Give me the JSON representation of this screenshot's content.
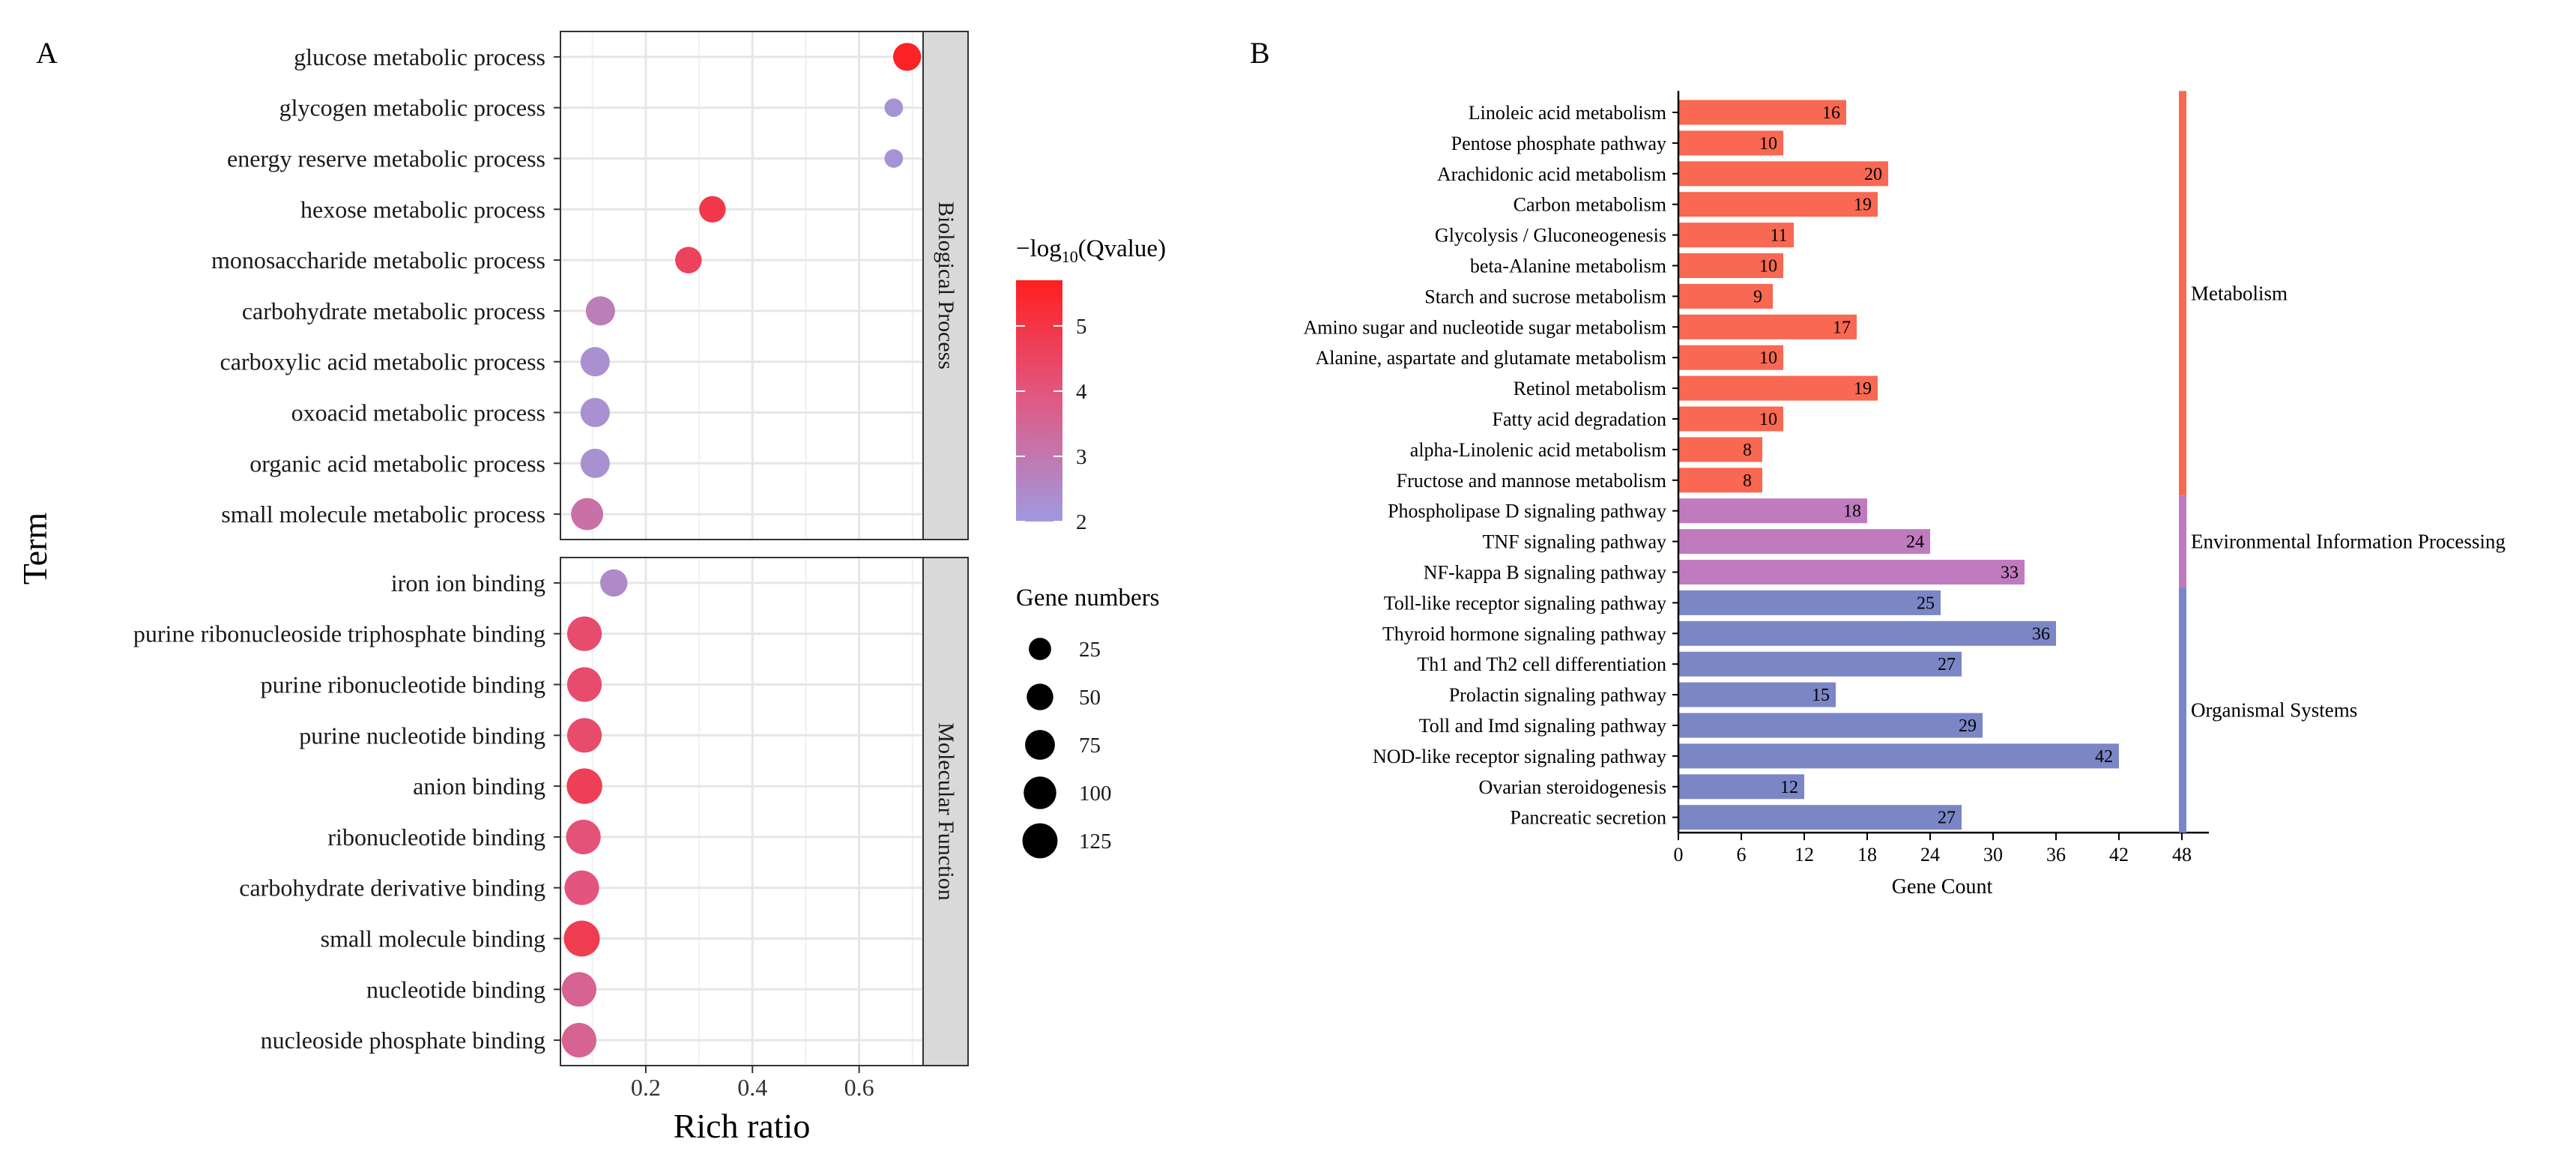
{
  "chart_data": [
    {
      "panel_label": "A",
      "type": "scatter",
      "xlabel": "Rich ratio",
      "ylabel": "Term",
      "xlim": [
        0.04,
        0.72
      ],
      "xticks": [
        0.2,
        0.4,
        0.6
      ],
      "xtick_labels": [
        "0.2",
        "0.4",
        "0.6"
      ],
      "grid": true,
      "facets": [
        {
          "name": "Biological Process",
          "points": [
            {
              "term": "glucose metabolic process",
              "rich_ratio": 0.69,
              "qvalue": 5.6,
              "genes": 60
            },
            {
              "term": "glycogen metabolic process",
              "rich_ratio": 0.665,
              "qvalue": 2.2,
              "genes": 10
            },
            {
              "term": "energy reserve metabolic process",
              "rich_ratio": 0.665,
              "qvalue": 2.2,
              "genes": 10
            },
            {
              "term": "hexose metabolic process",
              "rich_ratio": 0.325,
              "qvalue": 4.9,
              "genes": 50
            },
            {
              "term": "monosaccharide metabolic process",
              "rich_ratio": 0.28,
              "qvalue": 4.6,
              "genes": 50
            },
            {
              "term": "carbohydrate metabolic process",
              "rich_ratio": 0.115,
              "qvalue": 2.8,
              "genes": 70
            },
            {
              "term": "carboxylic acid metabolic process",
              "rich_ratio": 0.105,
              "qvalue": 2.3,
              "genes": 70
            },
            {
              "term": "oxoacid metabolic process",
              "rich_ratio": 0.105,
              "qvalue": 2.3,
              "genes": 70
            },
            {
              "term": "organic acid metabolic process",
              "rich_ratio": 0.105,
              "qvalue": 2.3,
              "genes": 70
            },
            {
              "term": "small molecule metabolic process",
              "rich_ratio": 0.09,
              "qvalue": 3.2,
              "genes": 95
            }
          ]
        },
        {
          "name": "Molecular Function",
          "points": [
            {
              "term": "iron ion binding",
              "rich_ratio": 0.14,
              "qvalue": 2.5,
              "genes": 55
            },
            {
              "term": "purine ribonucleoside triphosphate binding",
              "rich_ratio": 0.085,
              "qvalue": 4.3,
              "genes": 120
            },
            {
              "term": "purine ribonucleotide binding",
              "rich_ratio": 0.085,
              "qvalue": 4.3,
              "genes": 120
            },
            {
              "term": "purine nucleotide binding",
              "rich_ratio": 0.085,
              "qvalue": 4.3,
              "genes": 120
            },
            {
              "term": "anion binding",
              "rich_ratio": 0.085,
              "qvalue": 4.7,
              "genes": 130
            },
            {
              "term": "ribonucleotide binding",
              "rich_ratio": 0.083,
              "qvalue": 4.1,
              "genes": 120
            },
            {
              "term": "carbohydrate derivative binding",
              "rich_ratio": 0.08,
              "qvalue": 4.0,
              "genes": 120
            },
            {
              "term": "small molecule binding",
              "rich_ratio": 0.08,
              "qvalue": 4.8,
              "genes": 135
            },
            {
              "term": "nucleotide binding",
              "rich_ratio": 0.075,
              "qvalue": 3.6,
              "genes": 120
            },
            {
              "term": "nucleoside phosphate binding",
              "rich_ratio": 0.075,
              "qvalue": 3.6,
              "genes": 120
            }
          ]
        }
      ],
      "legend_color": {
        "title_prefix": "−log",
        "title_sub": "10",
        "title_suffix": "(Qvalue)",
        "min": 2,
        "max": 5.7,
        "ticks": [
          "2",
          "3",
          "4",
          "5"
        ],
        "low_color": "#9e9ae0",
        "mid_color": "#e05a86",
        "high_color": "#ff1f1f"
      },
      "legend_size": {
        "title": "Gene numbers",
        "entries": [
          "25",
          "50",
          "75",
          "100",
          "125"
        ]
      }
    },
    {
      "panel_label": "B",
      "type": "bar",
      "orientation": "horizontal",
      "xlabel": "Gene Count",
      "xlim": [
        0,
        48
      ],
      "xticks": [
        "0",
        "6",
        "12",
        "18",
        "24",
        "30",
        "36",
        "42",
        "48"
      ],
      "categories": [
        "Linoleic acid metabolism",
        "Pentose phosphate pathway",
        "Arachidonic acid metabolism",
        "Carbon metabolism",
        "Glycolysis / Gluconeogenesis",
        "beta-Alanine metabolism",
        "Starch and sucrose metabolism",
        "Amino sugar and nucleotide sugar metabolism",
        "Alanine, aspartate and glutamate metabolism",
        "Retinol metabolism",
        "Fatty acid degradation",
        "alpha-Linolenic acid metabolism",
        "Fructose and mannose metabolism",
        "Phospholipase D signaling pathway",
        "TNF signaling pathway",
        "NF-kappa B signaling pathway",
        "Toll-like receptor signaling pathway",
        "Thyroid hormone signaling pathway",
        "Th1 and Th2 cell differentiation",
        "Prolactin signaling pathway",
        "Toll and Imd signaling pathway",
        "NOD-like receptor signaling pathway",
        "Ovarian steroidogenesis",
        "Pancreatic secretion"
      ],
      "values": [
        16,
        10,
        20,
        19,
        11,
        10,
        9,
        17,
        10,
        19,
        10,
        8,
        8,
        18,
        24,
        33,
        25,
        36,
        27,
        15,
        29,
        42,
        12,
        27
      ],
      "group_index": [
        0,
        0,
        0,
        0,
        0,
        0,
        0,
        0,
        0,
        0,
        0,
        0,
        0,
        1,
        1,
        1,
        2,
        2,
        2,
        2,
        2,
        2,
        2,
        2
      ],
      "groups": [
        {
          "name": "Metabolism",
          "color": "#f86852"
        },
        {
          "name": "Environmental Information Processing",
          "color": "#c07bbe"
        },
        {
          "name": "Organismal Systems",
          "color": "#7b86c6"
        }
      ]
    }
  ]
}
